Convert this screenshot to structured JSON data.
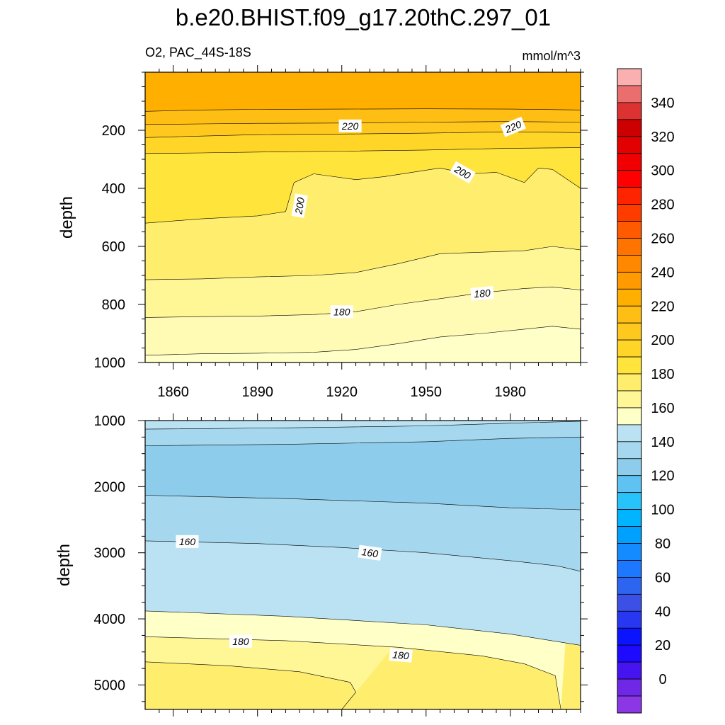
{
  "title": "b.e20.BHIST.f09_g17.20thC.297_01",
  "variable_label": "O2, PAC_44S-18S",
  "units_label": "mmol/m^3",
  "chart_data": [
    {
      "type": "contour",
      "panel": "upper",
      "ylabel": "depth",
      "xlim": [
        1850,
        2005
      ],
      "ylim": [
        1000,
        0
      ],
      "xticks": [
        1860,
        1890,
        1920,
        1950,
        1980
      ],
      "yticks": [
        200,
        400,
        600,
        800,
        1000
      ],
      "contour_labels": [
        {
          "text": "220",
          "x": 1923,
          "y": 185,
          "angle": 0
        },
        {
          "text": "220",
          "x": 1981,
          "y": 188,
          "angle": -22
        },
        {
          "text": "200",
          "x": 1905,
          "y": 460,
          "angle": -80
        },
        {
          "text": "200",
          "x": 1963,
          "y": 345,
          "angle": 30
        },
        {
          "text": "180",
          "x": 1920,
          "y": 825,
          "angle": 0
        },
        {
          "text": "180",
          "x": 1970,
          "y": 762,
          "angle": -5
        }
      ],
      "bands": [
        {
          "above": 230,
          "color": "#FFAF00",
          "boundary": [
            [
              1850,
              135
            ],
            [
              1870,
              130
            ],
            [
              1890,
              128
            ],
            [
              1920,
              127
            ],
            [
              1950,
              126
            ],
            [
              1980,
              127
            ],
            [
              2005,
              130
            ]
          ]
        },
        {
          "above": 225,
          "color": "#FFBE14",
          "boundary": [
            [
              1850,
              180
            ],
            [
              1870,
              178
            ],
            [
              1890,
              176
            ],
            [
              1920,
              175
            ],
            [
              1950,
              172
            ],
            [
              1980,
              170
            ],
            [
              2005,
              172
            ]
          ]
        },
        {
          "above": 220,
          "color": "#FFC81E",
          "boundary": [
            [
              1850,
              225
            ],
            [
              1870,
              220
            ],
            [
              1890,
              215
            ],
            [
              1920,
              213
            ],
            [
              1950,
              210
            ],
            [
              1980,
              205
            ],
            [
              2005,
              208
            ]
          ]
        },
        {
          "above": 210,
          "color": "#FFD628",
          "boundary": [
            [
              1850,
              280
            ],
            [
              1870,
              278
            ],
            [
              1890,
              275
            ],
            [
              1920,
              272
            ],
            [
              1950,
              268
            ],
            [
              1980,
              262
            ],
            [
              2005,
              260
            ]
          ]
        },
        {
          "above": 200,
          "color": "#FFE43C",
          "boundary": [
            [
              1850,
              520
            ],
            [
              1870,
              505
            ],
            [
              1890,
              495
            ],
            [
              1900,
              480
            ],
            [
              1903,
              380
            ],
            [
              1910,
              350
            ],
            [
              1925,
              370
            ],
            [
              1935,
              360
            ],
            [
              1945,
              345
            ],
            [
              1955,
              330
            ],
            [
              1965,
              350
            ],
            [
              1975,
              345
            ],
            [
              1985,
              380
            ],
            [
              1990,
              330
            ],
            [
              1995,
              335
            ],
            [
              2005,
              400
            ]
          ]
        },
        {
          "above": 190,
          "color": "#FFEE6E",
          "boundary": [
            [
              1850,
              715
            ],
            [
              1870,
              712
            ],
            [
              1890,
              705
            ],
            [
              1910,
              700
            ],
            [
              1925,
              690
            ],
            [
              1940,
              660
            ],
            [
              1955,
              625
            ],
            [
              1970,
              620
            ],
            [
              1985,
              615
            ],
            [
              1995,
              600
            ],
            [
              2005,
              612
            ]
          ]
        },
        {
          "above": 185,
          "color": "#FFF696",
          "boundary": [
            [
              1850,
              845
            ],
            [
              1870,
              842
            ],
            [
              1890,
              840
            ],
            [
              1910,
              835
            ],
            [
              1925,
              825
            ],
            [
              1940,
              800
            ],
            [
              1955,
              780
            ],
            [
              1970,
              760
            ],
            [
              1985,
              745
            ],
            [
              1995,
              740
            ],
            [
              2005,
              750
            ]
          ]
        },
        {
          "above": 180,
          "color": "#FFFAB4",
          "boundary": [
            [
              1850,
              975
            ],
            [
              1870,
              970
            ],
            [
              1890,
              968
            ],
            [
              1910,
              965
            ],
            [
              1925,
              955
            ],
            [
              1940,
              935
            ],
            [
              1955,
              912
            ],
            [
              1970,
              900
            ],
            [
              1985,
              885
            ],
            [
              1995,
              875
            ],
            [
              2005,
              885
            ]
          ]
        },
        {
          "above": 170,
          "color": "#FFFFC8",
          "boundary": [
            [
              1850,
              1000
            ],
            [
              2005,
              1000
            ]
          ]
        }
      ],
      "bottom_color": "#BAE2F2"
    },
    {
      "type": "contour",
      "panel": "lower",
      "ylabel": "depth",
      "xlim": [
        1850,
        2005
      ],
      "ylim": [
        5370,
        1000
      ],
      "xticks": [
        1860,
        1890,
        1920,
        1950,
        1980
      ],
      "yticks": [
        1000,
        2000,
        3000,
        4000,
        5000
      ],
      "contour_labels": [
        {
          "text": "160",
          "x": 1865,
          "y": 2830,
          "angle": 0
        },
        {
          "text": "160",
          "x": 1930,
          "y": 3000,
          "angle": 8
        },
        {
          "text": "180",
          "x": 1884,
          "y": 4340,
          "angle": 0
        },
        {
          "text": "180",
          "x": 1941,
          "y": 4550,
          "angle": 5
        }
      ],
      "bands": [
        {
          "above": 165,
          "color": "#BAE2F2",
          "boundary": [
            [
              1850,
              1130
            ],
            [
              1900,
              1110
            ],
            [
              1950,
              1080
            ],
            [
              1980,
              1040
            ],
            [
              2005,
              1010
            ]
          ]
        },
        {
          "above": 160,
          "color": "#A5D8EE",
          "boundary": [
            [
              1850,
              1380
            ],
            [
              1900,
              1360
            ],
            [
              1950,
              1320
            ],
            [
              1980,
              1270
            ],
            [
              2005,
              1250
            ]
          ]
        },
        {
          "above": 150,
          "color": "#8ECCEC",
          "boundary": [
            [
              1850,
              2130
            ],
            [
              1900,
              2180
            ],
            [
              1950,
              2250
            ],
            [
              1980,
              2320
            ],
            [
              2005,
              2350
            ]
          ]
        },
        {
          "above": 160,
          "color": "#A5D8EE",
          "boundary": [
            [
              1850,
              2820
            ],
            [
              1890,
              2860
            ],
            [
              1920,
              2920
            ],
            [
              1950,
              3000
            ],
            [
              1980,
              3120
            ],
            [
              1997,
              3200
            ],
            [
              2005,
              3280
            ]
          ]
        },
        {
          "above": 165,
          "color": "#BAE2F2",
          "boundary": [
            [
              1850,
              3880
            ],
            [
              1900,
              3960
            ],
            [
              1950,
              4090
            ],
            [
              1980,
              4230
            ],
            [
              2005,
              4400
            ]
          ]
        },
        {
          "above": 170,
          "color": "#FFFFC8",
          "boundary": [
            [
              1850,
              4270
            ],
            [
              1900,
              4330
            ],
            [
              1940,
              4430
            ],
            [
              1970,
              4560
            ],
            [
              1985,
              4680
            ],
            [
              1996,
              4860
            ],
            [
              1998,
              5370
            ]
          ]
        },
        {
          "above": 180,
          "color": "#FFF696",
          "boundary": [
            [
              1850,
              4650
            ],
            [
              1880,
              4710
            ],
            [
              1905,
              4800
            ],
            [
              1923,
              4960
            ],
            [
              1925,
              5110
            ],
            [
              1920,
              5370
            ]
          ]
        }
      ],
      "bottom_color": "#FFEE6E"
    }
  ],
  "colorbar": {
    "labels": [
      "340",
      "320",
      "300",
      "280",
      "260",
      "240",
      "220",
      "200",
      "180",
      "160",
      "140",
      "120",
      "100",
      "80",
      "60",
      "40",
      "20",
      "0"
    ],
    "colors": [
      "#FAB0B0",
      "#EA6E6E",
      "#DD3232",
      "#CC0000",
      "#E20000",
      "#F00000",
      "#FF0000",
      "#FF2400",
      "#FF3C00",
      "#FF5A00",
      "#FF7300",
      "#FF8800",
      "#FF9A00",
      "#FFAF00",
      "#FFBE14",
      "#FFC81E",
      "#FFD628",
      "#FFE43C",
      "#FFEE6E",
      "#FFF696",
      "#FFFFC8",
      "#BAE2F2",
      "#A5D8EE",
      "#8ECCEC",
      "#60C2F2",
      "#28C3FA",
      "#00B4FF",
      "#00A0FF",
      "#148CFF",
      "#1E78FF",
      "#2D64F0",
      "#3C50E6",
      "#2838F0",
      "#0A14FF",
      "#1E0AFF",
      "#4614F0",
      "#6E28E6",
      "#8C37E6"
    ]
  }
}
